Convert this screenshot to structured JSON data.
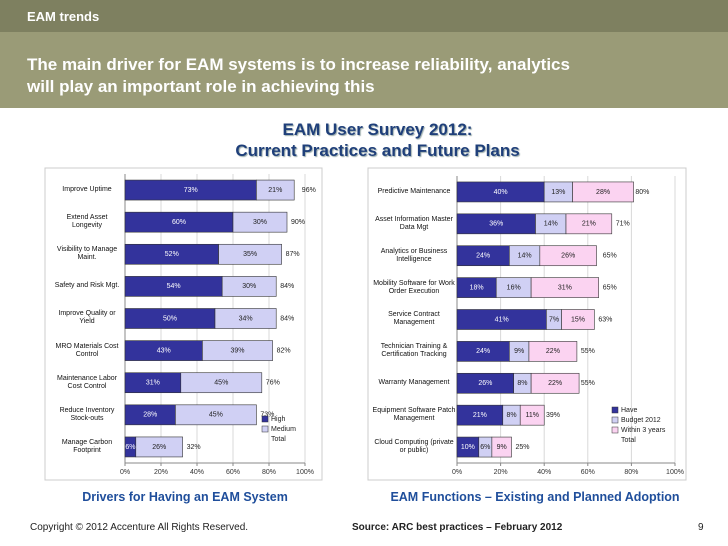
{
  "header": {
    "section": "EAM trends",
    "headline": "The main driver for EAM systems is to increase reliability, analytics will play an important role in achieving this"
  },
  "survey_title": [
    "EAM User Survey 2012:",
    "Current Practices and Future Plans"
  ],
  "chart_data": [
    {
      "type": "bar",
      "orientation": "horizontal",
      "stacked": true,
      "title": "Drivers for Having an EAM System",
      "categories": [
        "Improve Uptime",
        "Extend Asset Longevity",
        "Visibility to Manage Maint.",
        "Safety and Risk Mgt.",
        "Improve Quality or Yield",
        "MRO Materials Cost Control",
        "Maintenance Labor Cost Control",
        "Reduce Inventory Stock-outs",
        "Manage Carbon Footprint"
      ],
      "series": [
        {
          "name": "High",
          "color": "#33339c",
          "values": [
            73,
            60,
            52,
            54,
            50,
            43,
            31,
            28,
            6
          ],
          "value_labels": [
            "73%",
            "60%",
            "52%",
            "54%",
            "50%",
            "43%",
            "31%",
            "28%",
            "6%"
          ]
        },
        {
          "name": "Medium",
          "color": "#d0d0f4",
          "values": [
            21,
            30,
            35,
            30,
            34,
            39,
            45,
            45,
            26
          ],
          "value_labels": [
            "21%",
            "30%",
            "35%",
            "30%",
            "34%",
            "39%",
            "45%",
            "45%",
            "26%"
          ]
        }
      ],
      "totals": {
        "name": "Total",
        "values": [
          96,
          90,
          87,
          84,
          84,
          82,
          76,
          73,
          32
        ],
        "value_labels": [
          "96%",
          "90%",
          "87%",
          "84%",
          "84%",
          "82%",
          "76%",
          "73%",
          "32%"
        ]
      },
      "xlim": [
        0,
        100
      ],
      "xticks": [
        {
          "value": 0,
          "label": "0%"
        },
        {
          "value": 20,
          "label": "20%"
        },
        {
          "value": 40,
          "label": "40%"
        },
        {
          "value": 60,
          "label": "60%"
        },
        {
          "value": 80,
          "label": "80%"
        },
        {
          "value": 100,
          "label": "100%"
        }
      ],
      "grid": true,
      "legend": "bottom-right"
    },
    {
      "type": "bar",
      "orientation": "horizontal",
      "stacked": true,
      "title": "EAM Functions – Existing and Planned Adoption",
      "categories": [
        "Predictive Maintenance",
        "Asset Information Master Data Mgt",
        "Analytics or Business Intelligence",
        "Mobility Software for Work Order Execution",
        "Service Contract Management",
        "Technician Training & Certification Tracking",
        "Warranty Management",
        "Equipment Software Patch Management",
        "Cloud Computing (private or public)"
      ],
      "series": [
        {
          "name": "Have",
          "color": "#33339c",
          "values": [
            40,
            36,
            24,
            18,
            41,
            24,
            26,
            21,
            10
          ],
          "value_labels": [
            "40%",
            "36%",
            "24%",
            "18%",
            "41%",
            "24%",
            "26%",
            "21%",
            "10%"
          ]
        },
        {
          "name": "Budget 2012",
          "color": "#d0d0f4",
          "values": [
            13,
            14,
            14,
            16,
            7,
            9,
            8,
            8,
            6
          ],
          "value_labels": [
            "13%",
            "14%",
            "14%",
            "16%",
            "7%",
            "9%",
            "8%",
            "8%",
            "6%"
          ]
        },
        {
          "name": "Within 3 years",
          "color": "#fbd3f1",
          "values": [
            28,
            21,
            26,
            31,
            15,
            22,
            22,
            11,
            9
          ],
          "value_labels": [
            "28%",
            "21%",
            "26%",
            "31%",
            "15%",
            "22%",
            "22%",
            "11%",
            "9%"
          ]
        }
      ],
      "totals": {
        "name": "Total",
        "values": [
          80,
          71,
          65,
          65,
          63,
          55,
          55,
          39,
          25
        ],
        "value_labels": [
          "80%",
          "71%",
          "65%",
          "65%",
          "63%",
          "55%",
          "55%",
          "39%",
          "25%"
        ]
      },
      "xlim": [
        0,
        100
      ],
      "xticks": [
        {
          "value": 0,
          "label": "0%"
        },
        {
          "value": 20,
          "label": "20%"
        },
        {
          "value": 40,
          "label": "40%"
        },
        {
          "value": 60,
          "label": "60%"
        },
        {
          "value": 80,
          "label": "80%"
        },
        {
          "value": 100,
          "label": "100%"
        }
      ],
      "grid": true,
      "legend": "bottom-right"
    }
  ],
  "footer": {
    "copyright": "Copyright © 2012 Accenture All Rights Reserved.",
    "source": "Source: ARC best practices – February 2012",
    "page": "9"
  }
}
